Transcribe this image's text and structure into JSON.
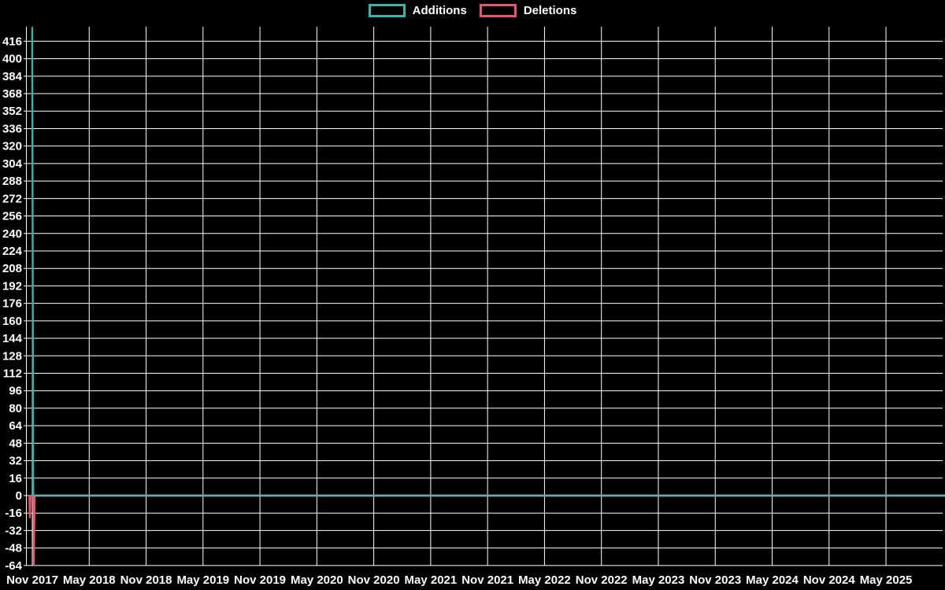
{
  "page": {
    "background": "#000000"
  },
  "legend": {
    "items": [
      {
        "label": "Additions",
        "color": "#35b5ac"
      },
      {
        "label": "Deletions",
        "color": "#e85570"
      }
    ]
  },
  "chart_data": {
    "type": "line",
    "title": "",
    "description": "Weekly code additions and deletions over time; a single spike at the start (Nov 2017), flat at zero afterwards",
    "x_tick_labels": [
      "Nov 2017",
      "May 2018",
      "Nov 2018",
      "May 2019",
      "Nov 2019",
      "May 2020",
      "Nov 2020",
      "May 2021",
      "Nov 2021",
      "May 2022",
      "Nov 2022",
      "May 2023",
      "Nov 2023",
      "May 2024",
      "Nov 2024",
      "May 2025"
    ],
    "y_ticks": [
      416,
      400,
      384,
      368,
      352,
      336,
      320,
      304,
      288,
      272,
      256,
      240,
      224,
      208,
      192,
      176,
      160,
      144,
      128,
      112,
      96,
      80,
      64,
      48,
      32,
      16,
      0,
      -16,
      -32,
      -48,
      -64
    ],
    "ylim": [
      -64,
      430
    ],
    "grid": true,
    "legend_position": "top-center",
    "background_color": "#000000",
    "grid_color": "#ffffff",
    "text_color": "#ffffff",
    "zero_line_color": "#7aa5a3",
    "series": [
      {
        "name": "Additions",
        "color": "#35b5ac",
        "peak_value": 428,
        "peak_at": "Nov 2017",
        "points_weeks": [
          [
            2.85,
            428
          ],
          [
            3.3,
            0
          ],
          [
            420,
            0
          ]
        ]
      },
      {
        "name": "Deletions",
        "color": "#e85570",
        "min_value": -64,
        "min_at": "Nov 2017",
        "points_weeks": [
          [
            1.5,
            0
          ],
          [
            1.8,
            -20
          ],
          [
            2.1,
            0
          ],
          [
            3.3,
            0
          ],
          [
            3.6,
            -64
          ],
          [
            4.0,
            0
          ],
          [
            420,
            0
          ]
        ]
      }
    ]
  }
}
